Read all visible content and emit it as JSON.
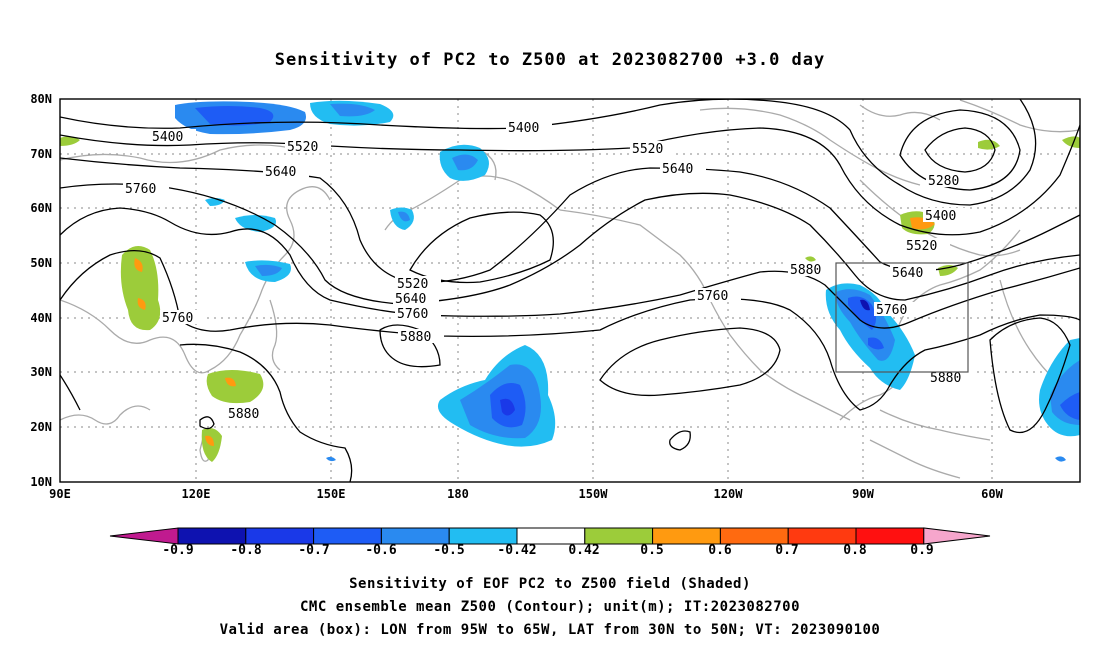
{
  "title": "Sensitivity of PC2 to Z500 at 2023082700 +3.0 day",
  "lat_labels": [
    "80N",
    "70N",
    "60N",
    "50N",
    "40N",
    "30N",
    "20N",
    "10N"
  ],
  "lon_labels": [
    "90E",
    "120E",
    "150E",
    "180",
    "150W",
    "120W",
    "90W",
    "60W"
  ],
  "contour_labels": [
    "5400",
    "5400",
    "5520",
    "5520",
    "5640",
    "5640",
    "5760",
    "5760",
    "5520",
    "5640",
    "5760",
    "5880",
    "5760",
    "5880",
    "5280",
    "5400",
    "5520",
    "5640",
    "5880",
    "5760",
    "5880"
  ],
  "colorbar": {
    "labels": [
      "-0.9",
      "-0.8",
      "-0.7",
      "-0.6",
      "-0.5",
      "-0.42",
      "0.42",
      "0.5",
      "0.6",
      "0.7",
      "0.8",
      "0.9"
    ],
    "colors": [
      "#c01a8f",
      "#0e12b0",
      "#1a39e8",
      "#1e5cf5",
      "#2a8af0",
      "#22bdf2",
      "#ffffff",
      "#9ccc3a",
      "#ff9a10",
      "#ff6a10",
      "#ff3a10",
      "#ff1010",
      "#f6a6cc"
    ]
  },
  "captions": [
    "Sensitivity of EOF PC2 to Z500 field (Shaded)",
    "CMC ensemble mean Z500 (Contour); unit(m); IT:2023082700",
    "Valid area (box): LON from 95W to 65W, LAT from 30N to 50N; VT: 2023090100"
  ]
}
